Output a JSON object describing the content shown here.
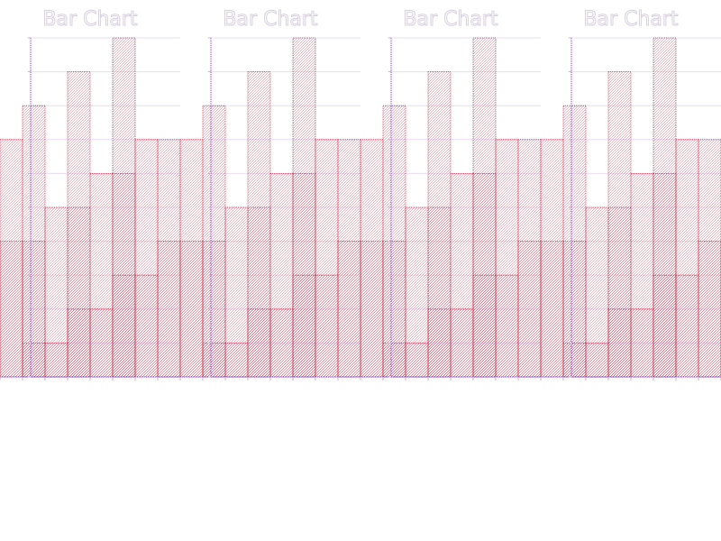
{
  "colors": {
    "bar_fill": "#f2c9d1",
    "bar_stroke": "#c8324e",
    "bar_hatch": "#c8324e",
    "axis": "#7d3fbf",
    "grid": "#e8ddf0",
    "title": "#d8d0e0",
    "tick": "#c0b0d0"
  },
  "chart_data": [
    {
      "type": "bar",
      "title": "Bar Chart",
      "xlabel": "",
      "ylabel": "",
      "ylim": [
        0,
        10
      ],
      "grid": true,
      "bars": [
        {
          "x": 0.5,
          "w": 1,
          "y": 7
        },
        {
          "x": 0.5,
          "w": 1,
          "y": 4
        },
        {
          "x": 1.5,
          "w": 1,
          "y": 8
        },
        {
          "x": 1.5,
          "w": 1,
          "y": 4
        },
        {
          "x": 1.5,
          "w": 1,
          "y": 1
        },
        {
          "x": 2.5,
          "w": 1,
          "y": 5
        },
        {
          "x": 2.5,
          "w": 1,
          "y": 1
        },
        {
          "x": 3.5,
          "w": 1,
          "y": 9
        },
        {
          "x": 3.5,
          "w": 1,
          "y": 5
        },
        {
          "x": 3.5,
          "w": 1,
          "y": 2
        },
        {
          "x": 4.5,
          "w": 1,
          "y": 6
        },
        {
          "x": 4.5,
          "w": 1,
          "y": 2
        },
        {
          "x": 5.5,
          "w": 1,
          "y": 10
        },
        {
          "x": 5.5,
          "w": 1,
          "y": 6
        },
        {
          "x": 5.5,
          "w": 1,
          "y": 3
        },
        {
          "x": 6.5,
          "w": 1,
          "y": 7
        },
        {
          "x": 6.5,
          "w": 1,
          "y": 3
        },
        {
          "x": 7.5,
          "w": 1,
          "y": 7
        },
        {
          "x": 7.5,
          "w": 1,
          "y": 4
        }
      ]
    },
    {
      "type": "bar",
      "title": "Bar Chart",
      "xlabel": "",
      "ylabel": "",
      "ylim": [
        0,
        10
      ],
      "grid": true,
      "bars": [
        {
          "x": 0.5,
          "w": 1,
          "y": 7
        },
        {
          "x": 0.5,
          "w": 1,
          "y": 4
        },
        {
          "x": 1.5,
          "w": 1,
          "y": 8
        },
        {
          "x": 1.5,
          "w": 1,
          "y": 4
        },
        {
          "x": 1.5,
          "w": 1,
          "y": 1
        },
        {
          "x": 2.5,
          "w": 1,
          "y": 5
        },
        {
          "x": 2.5,
          "w": 1,
          "y": 1
        },
        {
          "x": 3.5,
          "w": 1,
          "y": 9
        },
        {
          "x": 3.5,
          "w": 1,
          "y": 5
        },
        {
          "x": 3.5,
          "w": 1,
          "y": 2
        },
        {
          "x": 4.5,
          "w": 1,
          "y": 6
        },
        {
          "x": 4.5,
          "w": 1,
          "y": 2
        },
        {
          "x": 5.5,
          "w": 1,
          "y": 10
        },
        {
          "x": 5.5,
          "w": 1,
          "y": 6
        },
        {
          "x": 5.5,
          "w": 1,
          "y": 3
        },
        {
          "x": 6.5,
          "w": 1,
          "y": 7
        },
        {
          "x": 6.5,
          "w": 1,
          "y": 3
        },
        {
          "x": 7.5,
          "w": 1,
          "y": 7
        },
        {
          "x": 7.5,
          "w": 1,
          "y": 4
        }
      ]
    },
    {
      "type": "bar",
      "title": "Bar Chart",
      "xlabel": "",
      "ylabel": "",
      "ylim": [
        0,
        10
      ],
      "grid": true,
      "bars": [
        {
          "x": 0.5,
          "w": 1,
          "y": 7
        },
        {
          "x": 0.5,
          "w": 1,
          "y": 4
        },
        {
          "x": 1.5,
          "w": 1,
          "y": 8
        },
        {
          "x": 1.5,
          "w": 1,
          "y": 4
        },
        {
          "x": 1.5,
          "w": 1,
          "y": 1
        },
        {
          "x": 2.5,
          "w": 1,
          "y": 5
        },
        {
          "x": 2.5,
          "w": 1,
          "y": 1
        },
        {
          "x": 3.5,
          "w": 1,
          "y": 9
        },
        {
          "x": 3.5,
          "w": 1,
          "y": 5
        },
        {
          "x": 3.5,
          "w": 1,
          "y": 2
        },
        {
          "x": 4.5,
          "w": 1,
          "y": 6
        },
        {
          "x": 4.5,
          "w": 1,
          "y": 2
        },
        {
          "x": 5.5,
          "w": 1,
          "y": 10
        },
        {
          "x": 5.5,
          "w": 1,
          "y": 6
        },
        {
          "x": 5.5,
          "w": 1,
          "y": 3
        },
        {
          "x": 6.5,
          "w": 1,
          "y": 7
        },
        {
          "x": 6.5,
          "w": 1,
          "y": 3
        },
        {
          "x": 7.5,
          "w": 1,
          "y": 7
        },
        {
          "x": 7.5,
          "w": 1,
          "y": 4
        }
      ]
    },
    {
      "type": "bar",
      "title": "Bar Chart",
      "xlabel": "",
      "ylabel": "",
      "ylim": [
        0,
        10
      ],
      "grid": true,
      "bars": [
        {
          "x": 0.5,
          "w": 1,
          "y": 7
        },
        {
          "x": 0.5,
          "w": 1,
          "y": 4
        },
        {
          "x": 1.5,
          "w": 1,
          "y": 8
        },
        {
          "x": 1.5,
          "w": 1,
          "y": 4
        },
        {
          "x": 1.5,
          "w": 1,
          "y": 1
        },
        {
          "x": 2.5,
          "w": 1,
          "y": 5
        },
        {
          "x": 2.5,
          "w": 1,
          "y": 1
        },
        {
          "x": 3.5,
          "w": 1,
          "y": 9
        },
        {
          "x": 3.5,
          "w": 1,
          "y": 5
        },
        {
          "x": 3.5,
          "w": 1,
          "y": 2
        },
        {
          "x": 4.5,
          "w": 1,
          "y": 6
        },
        {
          "x": 4.5,
          "w": 1,
          "y": 2
        },
        {
          "x": 5.5,
          "w": 1,
          "y": 10
        },
        {
          "x": 5.5,
          "w": 1,
          "y": 6
        },
        {
          "x": 5.5,
          "w": 1,
          "y": 3
        },
        {
          "x": 6.5,
          "w": 1,
          "y": 7
        },
        {
          "x": 6.5,
          "w": 1,
          "y": 3
        },
        {
          "x": 7.5,
          "w": 1,
          "y": 7
        },
        {
          "x": 7.5,
          "w": 1,
          "y": 4
        }
      ]
    }
  ]
}
